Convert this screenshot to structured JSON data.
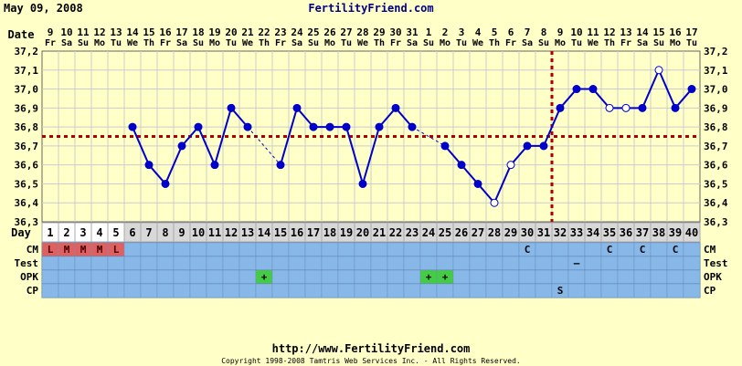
{
  "header": {
    "date": "May 09, 2008",
    "site": "FertilityFriend.com"
  },
  "footer": {
    "url": "http://www.FertilityFriend.com",
    "copyright": "Copyright 1998-2008 Tamtris Web Services Inc. - All Rights Reserved."
  },
  "colors": {
    "background": "#ffffc8",
    "line": "#0000cc",
    "coverline": "#aa0000",
    "row_bg": "#88b8e8",
    "period_cell": "#e06060",
    "opk_positive": "#44cc44",
    "day_row_bg": "#d8d8d8"
  },
  "chart_data": {
    "type": "line",
    "title": "",
    "ylabel": "",
    "xlabel": "",
    "row_labels": {
      "date": "Date",
      "day": "Day",
      "cm": "CM",
      "test": "Test",
      "opk": "OPK",
      "cp": "CP"
    },
    "ylim": [
      36.3,
      37.2
    ],
    "yticks": [
      "36,3",
      "36,4",
      "36,5",
      "36,6",
      "36,7",
      "36,8",
      "36,9",
      "37,0",
      "37,1",
      "37,2"
    ],
    "dates": [
      "9",
      "10",
      "11",
      "12",
      "13",
      "14",
      "15",
      "16",
      "17",
      "18",
      "19",
      "20",
      "21",
      "22",
      "23",
      "24",
      "25",
      "26",
      "27",
      "28",
      "29",
      "30",
      "31",
      "1",
      "2",
      "3",
      "4",
      "5",
      "6",
      "7",
      "8",
      "9",
      "10",
      "11",
      "12",
      "13",
      "14",
      "15",
      "16",
      "17"
    ],
    "weekdays": [
      "Fr",
      "Sa",
      "Su",
      "Mo",
      "Tu",
      "We",
      "Th",
      "Fr",
      "Sa",
      "Su",
      "Mo",
      "Tu",
      "We",
      "Th",
      "Fr",
      "Sa",
      "Su",
      "Mo",
      "Tu",
      "We",
      "Th",
      "Fr",
      "Sa",
      "Su",
      "Mo",
      "Tu",
      "We",
      "Th",
      "Fr",
      "Sa",
      "Su",
      "Mo",
      "Tu",
      "We",
      "Th",
      "Fr",
      "Sa",
      "Su",
      "Mo",
      "Tu"
    ],
    "days": [
      "1",
      "2",
      "3",
      "4",
      "5",
      "6",
      "7",
      "8",
      "9",
      "10",
      "11",
      "12",
      "13",
      "14",
      "15",
      "16",
      "17",
      "18",
      "19",
      "20",
      "21",
      "22",
      "23",
      "24",
      "25",
      "26",
      "27",
      "28",
      "29",
      "30",
      "31",
      "32",
      "33",
      "34",
      "35",
      "36",
      "37",
      "38",
      "39",
      "40"
    ],
    "temps": [
      null,
      null,
      null,
      null,
      null,
      36.8,
      36.6,
      36.5,
      36.7,
      36.8,
      36.6,
      36.9,
      36.8,
      null,
      36.6,
      36.9,
      36.8,
      36.8,
      36.8,
      36.5,
      36.8,
      36.9,
      36.8,
      null,
      36.7,
      36.6,
      36.5,
      36.4,
      36.6,
      36.7,
      36.7,
      36.9,
      37.0,
      37.0,
      36.9,
      36.9,
      36.9,
      37.1,
      36.9,
      37.0
    ],
    "open_points": [
      28,
      29,
      35,
      36,
      38
    ],
    "coverline": 36.75,
    "ovulation_day": 31,
    "cm": {
      "1": "L",
      "2": "M",
      "3": "M",
      "4": "M",
      "5": "L",
      "30": "C",
      "35": "C",
      "37": "C",
      "39": "C"
    },
    "period_days": [
      1,
      2,
      3,
      4,
      5
    ],
    "test": {
      "33": "–"
    },
    "opk_positive_days": [
      14,
      24,
      25
    ],
    "opk_symbol": "+",
    "cp": {
      "32": "S"
    }
  }
}
